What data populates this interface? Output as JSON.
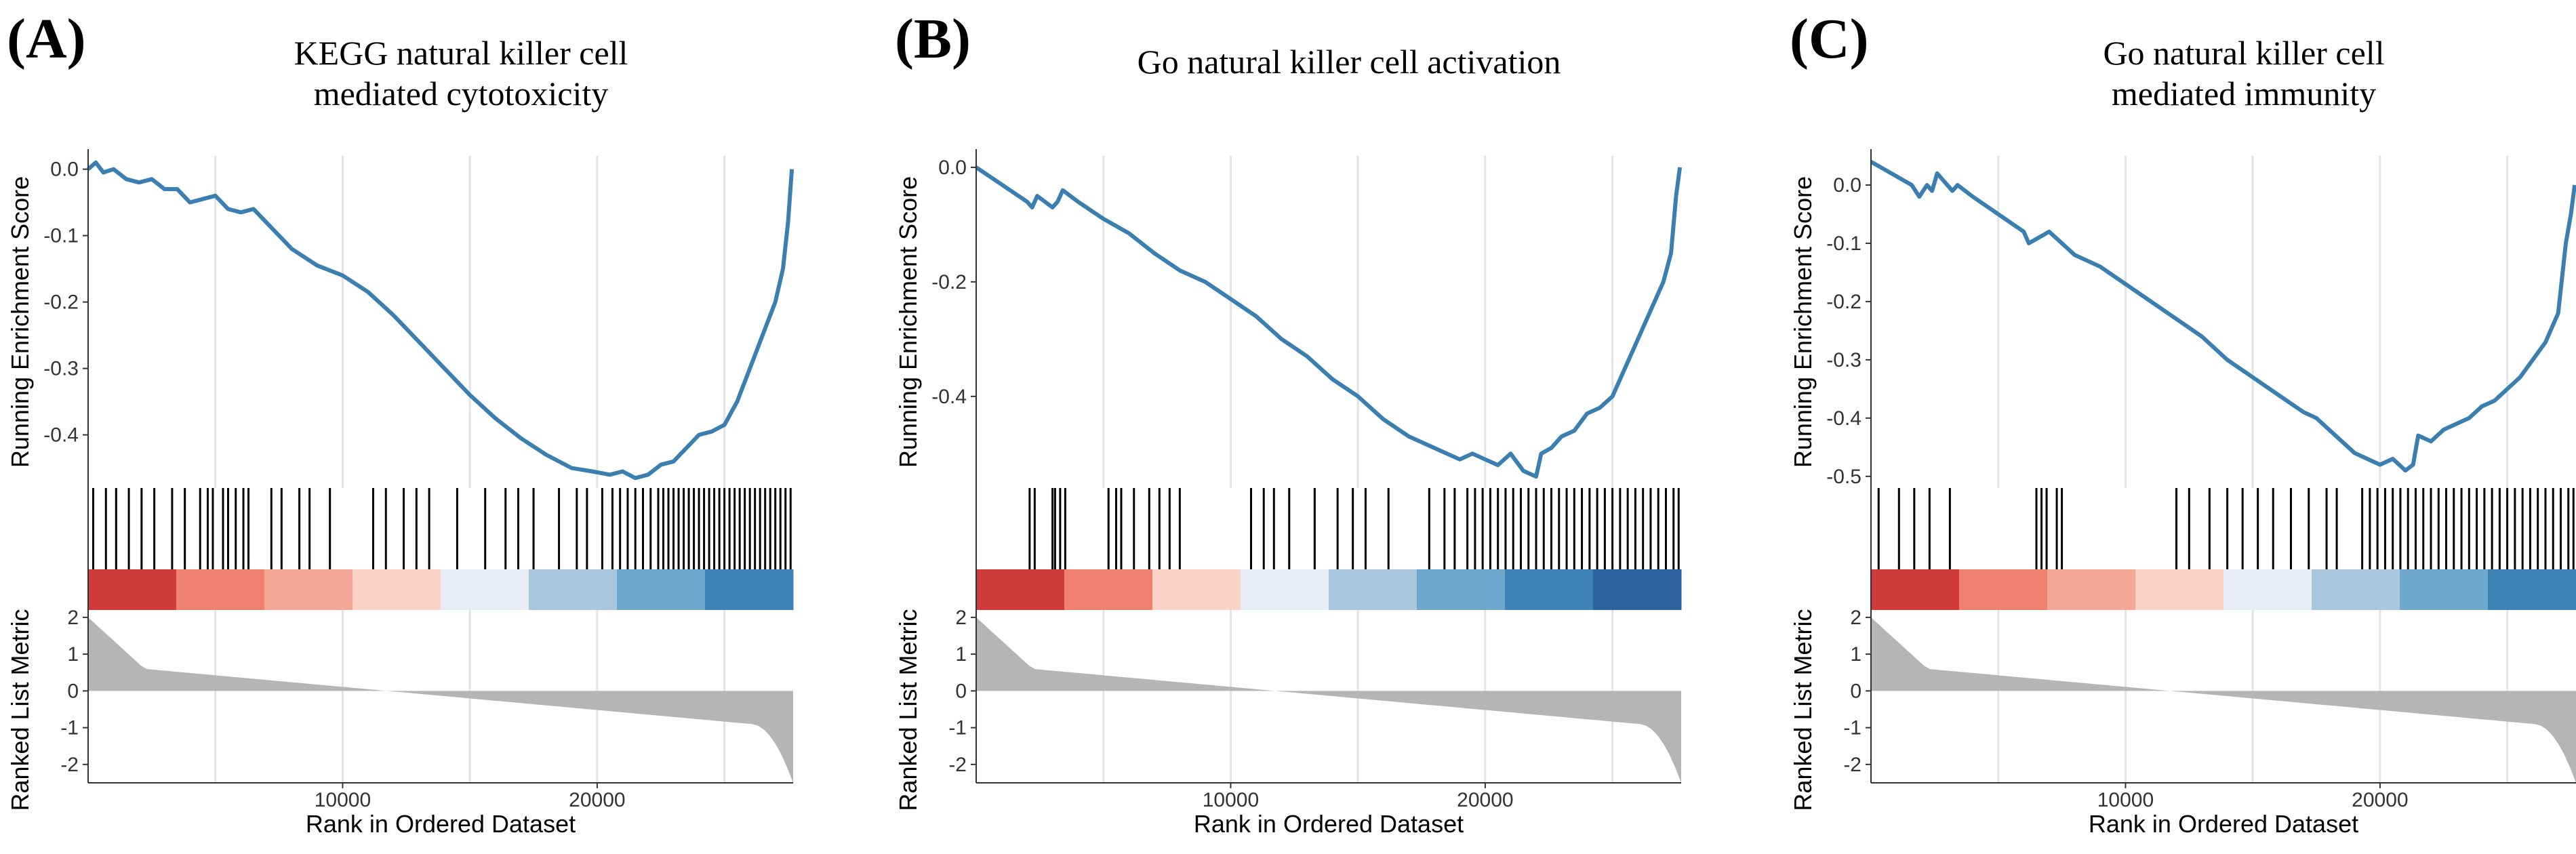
{
  "chart_data": [
    {
      "type": "line",
      "panel_label": "(A)",
      "title_lines": [
        "KEGG natural killer cell",
        "mediated cytotoxicity"
      ],
      "ylabel_top": "Running Enrichment Score",
      "ylabel_bottom": "Ranked List Metric",
      "xlabel": "Rank in Ordered Dataset",
      "xlim": [
        0,
        27700
      ],
      "xticks": [
        {
          "value": 10000,
          "label": "10000"
        },
        {
          "value": 20000,
          "label": "20000"
        }
      ],
      "ylim_top": [
        -0.48,
        0.02
      ],
      "yticks_top": [
        {
          "value": 0.0,
          "label": "0.0"
        },
        {
          "value": -0.1,
          "label": "-0.1"
        },
        {
          "value": -0.2,
          "label": "-0.2"
        },
        {
          "value": -0.3,
          "label": "-0.3"
        },
        {
          "value": -0.4,
          "label": "-0.4"
        }
      ],
      "ylim_bottom": [
        -2.5,
        2.2
      ],
      "yticks_bottom": [
        {
          "value": 2,
          "label": "2"
        },
        {
          "value": 1,
          "label": "1"
        },
        {
          "value": 0,
          "label": "0"
        },
        {
          "value": -1,
          "label": "-1"
        },
        {
          "value": -2,
          "label": "-2"
        }
      ],
      "series": [
        {
          "name": "Running Enrichment Score",
          "color": "#3a7fb0",
          "x": [
            0,
            300,
            600,
            1000,
            1500,
            2000,
            2500,
            3000,
            3500,
            4000,
            4500,
            5000,
            5500,
            6000,
            6500,
            7000,
            8000,
            9000,
            10000,
            11000,
            12000,
            13000,
            14000,
            15000,
            16000,
            17000,
            18000,
            19000,
            19800,
            20500,
            21000,
            21500,
            22000,
            22500,
            23000,
            23500,
            24000,
            24500,
            25000,
            25500,
            26000,
            26500,
            27000,
            27300,
            27500,
            27650
          ],
          "y": [
            0.0,
            0.01,
            -0.005,
            0.0,
            -0.015,
            -0.02,
            -0.015,
            -0.03,
            -0.03,
            -0.05,
            -0.045,
            -0.04,
            -0.06,
            -0.065,
            -0.06,
            -0.08,
            -0.12,
            -0.145,
            -0.16,
            -0.185,
            -0.22,
            -0.26,
            -0.3,
            -0.34,
            -0.375,
            -0.405,
            -0.43,
            -0.45,
            -0.455,
            -0.46,
            -0.455,
            -0.465,
            -0.46,
            -0.445,
            -0.44,
            -0.42,
            -0.4,
            -0.395,
            -0.385,
            -0.35,
            -0.3,
            -0.25,
            -0.2,
            -0.15,
            -0.08,
            0.0
          ]
        }
      ],
      "hits": [
        200,
        700,
        1100,
        1600,
        2100,
        2600,
        3300,
        3800,
        4400,
        4700,
        4900,
        5300,
        5500,
        5800,
        6100,
        6300,
        7200,
        7600,
        8300,
        8700,
        9500,
        11200,
        11700,
        12400,
        12900,
        13400,
        14500,
        15600,
        16400,
        16900,
        17500,
        18500,
        19200,
        19600,
        20200,
        20600,
        20900,
        21200,
        21500,
        21800,
        22100,
        22400,
        22600,
        22800,
        23000,
        23200,
        23400,
        23600,
        23800,
        24000,
        24200,
        24400,
        24600,
        24800,
        25000,
        25200,
        25400,
        25600,
        25800,
        26000,
        26200,
        26400,
        26600,
        26800,
        27000,
        27200,
        27400,
        27600
      ],
      "color_bar": [
        "#cf3b3b",
        "#f08070",
        "#f5a796",
        "#fbd3c6",
        "#e8ecf5",
        "#a9c8dd",
        "#70a8cd",
        "#3e83b6"
      ]
    },
    {
      "type": "line",
      "panel_label": "(B)",
      "title_lines": [
        "Go natural killer cell activation"
      ],
      "ylabel_top": "Running Enrichment Score",
      "ylabel_bottom": "Ranked List Metric",
      "xlabel": "Rank in Ordered Dataset",
      "xlim": [
        0,
        27700
      ],
      "xticks": [
        {
          "value": 10000,
          "label": "10000"
        },
        {
          "value": 20000,
          "label": "20000"
        }
      ],
      "ylim_top": [
        -0.56,
        0.02
      ],
      "yticks_top": [
        {
          "value": 0.0,
          "label": "0.0"
        },
        {
          "value": -0.2,
          "label": "-0.2"
        },
        {
          "value": -0.4,
          "label": "-0.4"
        }
      ],
      "ylim_bottom": [
        -2.5,
        2.2
      ],
      "yticks_bottom": [
        {
          "value": 2,
          "label": "2"
        },
        {
          "value": 1,
          "label": "1"
        },
        {
          "value": 0,
          "label": "0"
        },
        {
          "value": -1,
          "label": "-1"
        },
        {
          "value": -2,
          "label": "-2"
        }
      ],
      "series": [
        {
          "name": "Running Enrichment Score",
          "color": "#3a7fb0",
          "x": [
            0,
            1000,
            2000,
            2200,
            2400,
            3000,
            3200,
            3400,
            4000,
            5000,
            5400,
            6000,
            7000,
            8000,
            9000,
            10000,
            11000,
            12000,
            13000,
            14000,
            15000,
            16000,
            17000,
            18000,
            19000,
            19500,
            20000,
            20500,
            21000,
            21500,
            22000,
            22200,
            22600,
            23000,
            23500,
            24000,
            24500,
            25000,
            25500,
            26000,
            26500,
            27000,
            27300,
            27500,
            27650
          ],
          "y": [
            0.0,
            -0.03,
            -0.06,
            -0.07,
            -0.05,
            -0.07,
            -0.06,
            -0.04,
            -0.06,
            -0.09,
            -0.1,
            -0.115,
            -0.15,
            -0.18,
            -0.2,
            -0.23,
            -0.26,
            -0.3,
            -0.33,
            -0.37,
            -0.4,
            -0.44,
            -0.47,
            -0.49,
            -0.51,
            -0.5,
            -0.51,
            -0.52,
            -0.5,
            -0.53,
            -0.54,
            -0.5,
            -0.49,
            -0.47,
            -0.46,
            -0.43,
            -0.42,
            -0.4,
            -0.35,
            -0.3,
            -0.25,
            -0.2,
            -0.15,
            -0.05,
            0.0
          ]
        }
      ],
      "hits": [
        2100,
        2300,
        3000,
        3100,
        3300,
        3500,
        5200,
        5500,
        5700,
        6200,
        6800,
        7200,
        7600,
        8000,
        10800,
        11300,
        11700,
        12300,
        13300,
        14200,
        14800,
        15300,
        16200,
        17800,
        18400,
        18800,
        19300,
        19600,
        19900,
        20200,
        20500,
        20800,
        21100,
        21400,
        21700,
        22000,
        22300,
        22600,
        22900,
        23200,
        23500,
        23800,
        24100,
        24400,
        24700,
        25000,
        25300,
        25600,
        25900,
        26200,
        26500,
        26800,
        27100,
        27400,
        27600
      ],
      "color_bar": [
        "#cf3b3b",
        "#f08070",
        "#fbd3c6",
        "#e8ecf5",
        "#a9c8dd",
        "#70a8cd",
        "#3e83b6",
        "#2c63a0"
      ]
    },
    {
      "type": "line",
      "panel_label": "(C)",
      "title_lines": [
        "Go natural killer cell",
        "mediated immunity"
      ],
      "ylabel_top": "Running Enrichment Score",
      "ylabel_bottom": "Ranked List Metric",
      "xlabel": "Rank in Ordered Dataset",
      "xlim": [
        0,
        27700
      ],
      "xticks": [
        {
          "value": 10000,
          "label": "10000"
        },
        {
          "value": 20000,
          "label": "20000"
        }
      ],
      "ylim_top": [
        -0.52,
        0.05
      ],
      "yticks_top": [
        {
          "value": 0.0,
          "label": "0.0"
        },
        {
          "value": -0.1,
          "label": "-0.1"
        },
        {
          "value": -0.2,
          "label": "-0.2"
        },
        {
          "value": -0.3,
          "label": "-0.3"
        },
        {
          "value": -0.4,
          "label": "-0.4"
        },
        {
          "value": -0.5,
          "label": "-0.5"
        }
      ],
      "ylim_bottom": [
        -2.5,
        2.2
      ],
      "yticks_bottom": [
        {
          "value": 2,
          "label": "2"
        },
        {
          "value": 1,
          "label": "1"
        },
        {
          "value": 0,
          "label": "0"
        },
        {
          "value": -1,
          "label": "-1"
        },
        {
          "value": -2,
          "label": "-2"
        }
      ],
      "series": [
        {
          "name": "Running Enrichment Score",
          "color": "#3a7fb0",
          "x": [
            0,
            800,
            1600,
            1900,
            2200,
            2400,
            2600,
            3000,
            3200,
            3400,
            4000,
            5000,
            6000,
            6200,
            6600,
            7000,
            7500,
            8000,
            8500,
            9000,
            10000,
            11000,
            12000,
            13000,
            14000,
            15000,
            16000,
            17000,
            17500,
            18000,
            19000,
            19500,
            20000,
            20500,
            21000,
            21300,
            21500,
            22000,
            22500,
            23000,
            23500,
            24000,
            24500,
            25000,
            25500,
            26000,
            26500,
            27000,
            27300,
            27500,
            27650
          ],
          "y": [
            0.04,
            0.02,
            0.0,
            -0.02,
            0.0,
            -0.01,
            0.02,
            0.0,
            -0.01,
            0.0,
            -0.02,
            -0.05,
            -0.08,
            -0.1,
            -0.09,
            -0.08,
            -0.1,
            -0.12,
            -0.13,
            -0.14,
            -0.17,
            -0.2,
            -0.23,
            -0.26,
            -0.3,
            -0.33,
            -0.36,
            -0.39,
            -0.4,
            -0.42,
            -0.46,
            -0.47,
            -0.48,
            -0.47,
            -0.49,
            -0.48,
            -0.43,
            -0.44,
            -0.42,
            -0.41,
            -0.4,
            -0.38,
            -0.37,
            -0.35,
            -0.33,
            -0.3,
            -0.27,
            -0.22,
            -0.1,
            -0.05,
            0.0
          ]
        }
      ],
      "hits": [
        300,
        1100,
        1700,
        2300,
        3100,
        6500,
        6700,
        6900,
        7300,
        7500,
        12000,
        12500,
        13300,
        14000,
        14600,
        15200,
        15800,
        16500,
        17200,
        17900,
        18300,
        19300,
        19600,
        19900,
        20200,
        20500,
        20800,
        21100,
        21400,
        21700,
        22000,
        22300,
        22600,
        22900,
        23200,
        23500,
        23800,
        24100,
        24400,
        24700,
        25000,
        25300,
        25600,
        25900,
        26200,
        26500,
        26800,
        27100,
        27400,
        27600
      ],
      "color_bar": [
        "#cf3b3b",
        "#f08070",
        "#f5a796",
        "#fbd3c6",
        "#e8ecf5",
        "#a9c8dd",
        "#70a8cd",
        "#3e83b6"
      ]
    }
  ]
}
